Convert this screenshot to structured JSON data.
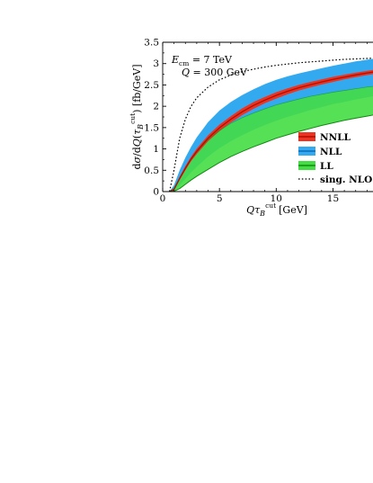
{
  "chart_data": {
    "type": "area",
    "title": "",
    "xlabel": "Qτ_B^cut [GeV]",
    "ylabel": "dσ/dQ(τ_B^cut) [fb/GeV]",
    "xlim": [
      0,
      19
    ],
    "ylim": [
      0,
      3.5
    ],
    "x_ticks": [
      "0",
      "5",
      "10",
      "15"
    ],
    "y_ticks": [
      "0",
      "0.5",
      "1",
      "1.5",
      "2",
      "2.5",
      "3",
      "3.5"
    ],
    "annotations": [
      {
        "text": "E_cm = 7 TeV"
      },
      {
        "text": "Q = 300 GeV"
      }
    ],
    "legend": {
      "placement": "right",
      "entries": [
        {
          "label": "NNLL",
          "color": "#ee3322",
          "edge": "#aa1100"
        },
        {
          "label": "NLL",
          "color": "#33aaf0",
          "edge": "#1166bb"
        },
        {
          "label": "LL",
          "color": "#44dd44",
          "edge": "#118811"
        },
        {
          "label": "sing. NLO",
          "style": "dotted"
        }
      ]
    },
    "x": [
      0.6,
      1,
      1.5,
      2,
      2.5,
      3,
      4,
      5,
      6,
      7,
      8,
      9,
      10,
      11,
      12,
      13,
      14,
      15,
      16,
      17,
      18,
      19
    ],
    "series": [
      {
        "name": "NLL",
        "upper": [
          0,
          0.15,
          0.5,
          0.8,
          1.05,
          1.27,
          1.63,
          1.9,
          2.1,
          2.26,
          2.4,
          2.52,
          2.62,
          2.7,
          2.77,
          2.83,
          2.89,
          2.95,
          3.0,
          3.05,
          3.09,
          3.13
        ],
        "lower": [
          0,
          0.02,
          0.15,
          0.3,
          0.45,
          0.58,
          0.82,
          1.02,
          1.18,
          1.32,
          1.45,
          1.56,
          1.66,
          1.75,
          1.83,
          1.91,
          1.98,
          2.05,
          2.1,
          2.16,
          2.21,
          2.26
        ]
      },
      {
        "name": "LL",
        "upper": [
          0,
          0.08,
          0.32,
          0.55,
          0.75,
          0.93,
          1.22,
          1.43,
          1.6,
          1.73,
          1.84,
          1.94,
          2.03,
          2.1,
          2.17,
          2.23,
          2.28,
          2.33,
          2.37,
          2.41,
          2.45,
          2.48
        ],
        "lower": [
          0,
          0.01,
          0.07,
          0.17,
          0.27,
          0.36,
          0.52,
          0.68,
          0.82,
          0.94,
          1.05,
          1.15,
          1.25,
          1.33,
          1.41,
          1.48,
          1.55,
          1.61,
          1.67,
          1.72,
          1.77,
          1.82
        ]
      },
      {
        "name": "NNLL",
        "upper": [
          0,
          0.07,
          0.35,
          0.6,
          0.82,
          1.01,
          1.32,
          1.57,
          1.77,
          1.95,
          2.1,
          2.22,
          2.33,
          2.42,
          2.5,
          2.57,
          2.63,
          2.69,
          2.74,
          2.79,
          2.83,
          2.87
        ],
        "lower": [
          0,
          0.03,
          0.27,
          0.5,
          0.71,
          0.88,
          1.18,
          1.42,
          1.62,
          1.79,
          1.94,
          2.07,
          2.18,
          2.28,
          2.37,
          2.44,
          2.51,
          2.57,
          2.63,
          2.68,
          2.73,
          2.77
        ],
        "central": [
          0,
          0.05,
          0.31,
          0.55,
          0.765,
          0.945,
          1.25,
          1.495,
          1.695,
          1.87,
          2.02,
          2.145,
          2.255,
          2.35,
          2.435,
          2.505,
          2.57,
          2.63,
          2.685,
          2.735,
          2.78,
          2.82
        ]
      },
      {
        "name": "sing. NLO",
        "values": [
          0,
          0.5,
          1.25,
          1.7,
          2.0,
          2.2,
          2.45,
          2.62,
          2.73,
          2.81,
          2.87,
          2.92,
          2.96,
          2.99,
          3.02,
          3.04,
          3.06,
          3.08,
          3.1,
          3.11,
          3.12,
          3.13
        ]
      }
    ]
  }
}
